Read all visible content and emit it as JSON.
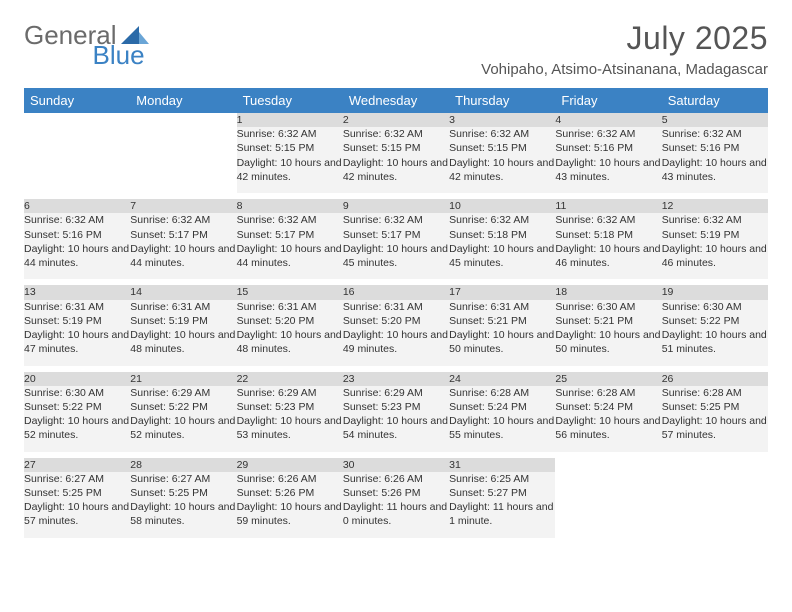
{
  "logo": {
    "part1": "General",
    "part2": "Blue"
  },
  "title": "July 2025",
  "location": "Vohipaho, Atsimo-Atsinanana, Madagascar",
  "colors": {
    "header_bg": "#3b82c4",
    "header_text": "#ffffff",
    "daynum_bg": "#dcdcdc",
    "info_bg": "#f3f3f3",
    "page_bg": "#ffffff",
    "title_color": "#555555",
    "text_color": "#333333",
    "logo_gray": "#6b6b6b",
    "logo_blue": "#3b82c4"
  },
  "typography": {
    "title_fontsize": 32,
    "location_fontsize": 15,
    "dayheader_fontsize": 13,
    "daynum_fontsize": 12,
    "cell_fontsize": 10.5
  },
  "dayHeaders": [
    "Sunday",
    "Monday",
    "Tuesday",
    "Wednesday",
    "Thursday",
    "Friday",
    "Saturday"
  ],
  "weeks": [
    [
      null,
      null,
      {
        "n": "1",
        "sr": "6:32 AM",
        "ss": "5:15 PM",
        "dl": "10 hours and 42 minutes."
      },
      {
        "n": "2",
        "sr": "6:32 AM",
        "ss": "5:15 PM",
        "dl": "10 hours and 42 minutes."
      },
      {
        "n": "3",
        "sr": "6:32 AM",
        "ss": "5:15 PM",
        "dl": "10 hours and 42 minutes."
      },
      {
        "n": "4",
        "sr": "6:32 AM",
        "ss": "5:16 PM",
        "dl": "10 hours and 43 minutes."
      },
      {
        "n": "5",
        "sr": "6:32 AM",
        "ss": "5:16 PM",
        "dl": "10 hours and 43 minutes."
      }
    ],
    [
      {
        "n": "6",
        "sr": "6:32 AM",
        "ss": "5:16 PM",
        "dl": "10 hours and 44 minutes."
      },
      {
        "n": "7",
        "sr": "6:32 AM",
        "ss": "5:17 PM",
        "dl": "10 hours and 44 minutes."
      },
      {
        "n": "8",
        "sr": "6:32 AM",
        "ss": "5:17 PM",
        "dl": "10 hours and 44 minutes."
      },
      {
        "n": "9",
        "sr": "6:32 AM",
        "ss": "5:17 PM",
        "dl": "10 hours and 45 minutes."
      },
      {
        "n": "10",
        "sr": "6:32 AM",
        "ss": "5:18 PM",
        "dl": "10 hours and 45 minutes."
      },
      {
        "n": "11",
        "sr": "6:32 AM",
        "ss": "5:18 PM",
        "dl": "10 hours and 46 minutes."
      },
      {
        "n": "12",
        "sr": "6:32 AM",
        "ss": "5:19 PM",
        "dl": "10 hours and 46 minutes."
      }
    ],
    [
      {
        "n": "13",
        "sr": "6:31 AM",
        "ss": "5:19 PM",
        "dl": "10 hours and 47 minutes."
      },
      {
        "n": "14",
        "sr": "6:31 AM",
        "ss": "5:19 PM",
        "dl": "10 hours and 48 minutes."
      },
      {
        "n": "15",
        "sr": "6:31 AM",
        "ss": "5:20 PM",
        "dl": "10 hours and 48 minutes."
      },
      {
        "n": "16",
        "sr": "6:31 AM",
        "ss": "5:20 PM",
        "dl": "10 hours and 49 minutes."
      },
      {
        "n": "17",
        "sr": "6:31 AM",
        "ss": "5:21 PM",
        "dl": "10 hours and 50 minutes."
      },
      {
        "n": "18",
        "sr": "6:30 AM",
        "ss": "5:21 PM",
        "dl": "10 hours and 50 minutes."
      },
      {
        "n": "19",
        "sr": "6:30 AM",
        "ss": "5:22 PM",
        "dl": "10 hours and 51 minutes."
      }
    ],
    [
      {
        "n": "20",
        "sr": "6:30 AM",
        "ss": "5:22 PM",
        "dl": "10 hours and 52 minutes."
      },
      {
        "n": "21",
        "sr": "6:29 AM",
        "ss": "5:22 PM",
        "dl": "10 hours and 52 minutes."
      },
      {
        "n": "22",
        "sr": "6:29 AM",
        "ss": "5:23 PM",
        "dl": "10 hours and 53 minutes."
      },
      {
        "n": "23",
        "sr": "6:29 AM",
        "ss": "5:23 PM",
        "dl": "10 hours and 54 minutes."
      },
      {
        "n": "24",
        "sr": "6:28 AM",
        "ss": "5:24 PM",
        "dl": "10 hours and 55 minutes."
      },
      {
        "n": "25",
        "sr": "6:28 AM",
        "ss": "5:24 PM",
        "dl": "10 hours and 56 minutes."
      },
      {
        "n": "26",
        "sr": "6:28 AM",
        "ss": "5:25 PM",
        "dl": "10 hours and 57 minutes."
      }
    ],
    [
      {
        "n": "27",
        "sr": "6:27 AM",
        "ss": "5:25 PM",
        "dl": "10 hours and 57 minutes."
      },
      {
        "n": "28",
        "sr": "6:27 AM",
        "ss": "5:25 PM",
        "dl": "10 hours and 58 minutes."
      },
      {
        "n": "29",
        "sr": "6:26 AM",
        "ss": "5:26 PM",
        "dl": "10 hours and 59 minutes."
      },
      {
        "n": "30",
        "sr": "6:26 AM",
        "ss": "5:26 PM",
        "dl": "11 hours and 0 minutes."
      },
      {
        "n": "31",
        "sr": "6:25 AM",
        "ss": "5:27 PM",
        "dl": "11 hours and 1 minute."
      },
      null,
      null
    ]
  ],
  "labels": {
    "sunrise": "Sunrise:",
    "sunset": "Sunset:",
    "daylight": "Daylight:"
  }
}
